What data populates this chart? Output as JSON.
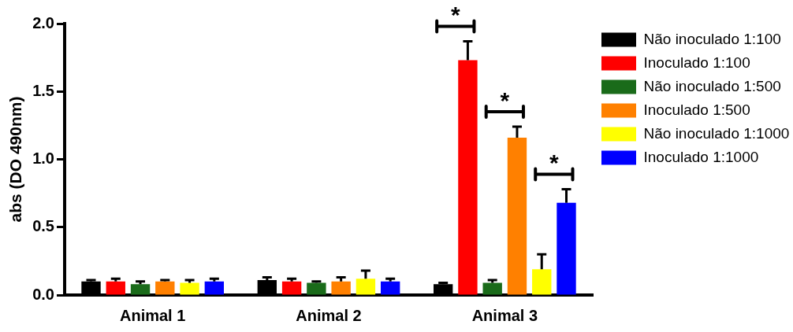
{
  "chart_data": {
    "type": "bar",
    "ylabel": "abs (DO 490nm)",
    "categories": [
      "Animal 1",
      "Animal 2",
      "Animal 3"
    ],
    "series": [
      {
        "name": "Não inoculado 1:100",
        "color": "#000000",
        "values": [
          0.1,
          0.11,
          0.08
        ],
        "errors": [
          0.01,
          0.02,
          0.01
        ]
      },
      {
        "name": "Inoculado 1:100",
        "color": "#ff0000",
        "values": [
          0.1,
          0.1,
          1.73
        ],
        "errors": [
          0.02,
          0.02,
          0.14
        ]
      },
      {
        "name": "Não inoculado 1:500",
        "color": "#1a6b1a",
        "values": [
          0.08,
          0.09,
          0.09
        ],
        "errors": [
          0.02,
          0.01,
          0.02
        ]
      },
      {
        "name": "Inoculado 1:500",
        "color": "#ff8000",
        "values": [
          0.1,
          0.1,
          1.16
        ],
        "errors": [
          0.01,
          0.03,
          0.08
        ]
      },
      {
        "name": "Não inoculado 1:1000",
        "color": "#ffff00",
        "values": [
          0.09,
          0.12,
          0.19
        ],
        "errors": [
          0.02,
          0.06,
          0.11
        ]
      },
      {
        "name": "Inoculado 1:1000",
        "color": "#0000ff",
        "values": [
          0.1,
          0.1,
          0.68
        ],
        "errors": [
          0.02,
          0.02,
          0.1
        ]
      }
    ],
    "annotations": [
      "*",
      "*",
      "*"
    ],
    "ylim": [
      0,
      2
    ],
    "yticks": [
      {
        "value": 0,
        "label": "0.0"
      },
      {
        "value": 0.5,
        "label": "0.5"
      },
      {
        "value": 1,
        "label": "1.0"
      },
      {
        "value": 1.5,
        "label": "1.5"
      },
      {
        "value": 2,
        "label": "2.0"
      }
    ],
    "grid": false,
    "legend": "right"
  }
}
